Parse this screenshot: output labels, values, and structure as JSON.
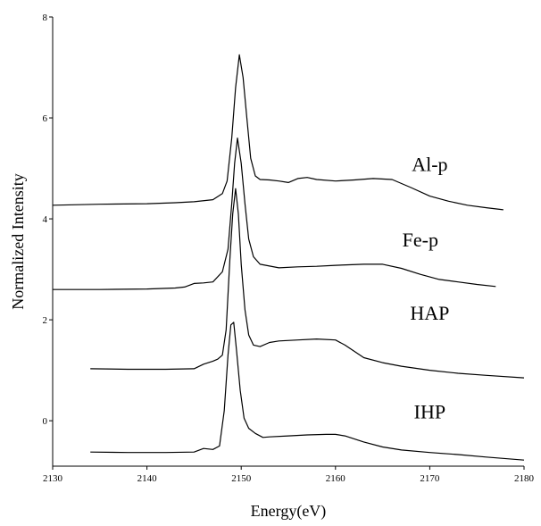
{
  "chart_data": {
    "type": "line",
    "xlabel": "Energy(eV)",
    "ylabel": "Normalized Intensity",
    "xlim": [
      2130,
      2180
    ],
    "ylim": [
      -0.9,
      8
    ],
    "x_ticks": [
      2130,
      2140,
      2150,
      2160,
      2170,
      2180
    ],
    "y_ticks": [
      0,
      2,
      4,
      6,
      8
    ],
    "grid": false,
    "line_color": "#000000",
    "series": [
      {
        "name": "Al-p",
        "points": [
          [
            2130,
            4.27
          ],
          [
            2135,
            4.29
          ],
          [
            2140,
            4.3
          ],
          [
            2143,
            4.32
          ],
          [
            2145,
            4.34
          ],
          [
            2147,
            4.38
          ],
          [
            2148,
            4.5
          ],
          [
            2148.5,
            4.75
          ],
          [
            2149,
            5.6
          ],
          [
            2149.4,
            6.6
          ],
          [
            2149.8,
            7.25
          ],
          [
            2150.2,
            6.8
          ],
          [
            2150.6,
            6.0
          ],
          [
            2151,
            5.2
          ],
          [
            2151.5,
            4.85
          ],
          [
            2152,
            4.78
          ],
          [
            2153,
            4.77
          ],
          [
            2154,
            4.75
          ],
          [
            2155,
            4.72
          ],
          [
            2156,
            4.8
          ],
          [
            2157,
            4.82
          ],
          [
            2158,
            4.78
          ],
          [
            2160,
            4.75
          ],
          [
            2162,
            4.77
          ],
          [
            2164,
            4.8
          ],
          [
            2166,
            4.78
          ],
          [
            2168,
            4.62
          ],
          [
            2170,
            4.45
          ],
          [
            2172,
            4.35
          ],
          [
            2174,
            4.27
          ],
          [
            2176,
            4.22
          ],
          [
            2177.8,
            4.18
          ]
        ]
      },
      {
        "name": "Fe-p",
        "points": [
          [
            2130,
            2.6
          ],
          [
            2135,
            2.6
          ],
          [
            2140,
            2.61
          ],
          [
            2143,
            2.63
          ],
          [
            2144,
            2.65
          ],
          [
            2145,
            2.72
          ],
          [
            2146,
            2.73
          ],
          [
            2147,
            2.75
          ],
          [
            2148,
            2.95
          ],
          [
            2148.6,
            3.4
          ],
          [
            2149,
            4.3
          ],
          [
            2149.3,
            5.1
          ],
          [
            2149.6,
            5.6
          ],
          [
            2150,
            5.1
          ],
          [
            2150.4,
            4.3
          ],
          [
            2150.8,
            3.6
          ],
          [
            2151.3,
            3.25
          ],
          [
            2152,
            3.1
          ],
          [
            2154,
            3.03
          ],
          [
            2156,
            3.05
          ],
          [
            2158,
            3.06
          ],
          [
            2160,
            3.08
          ],
          [
            2163,
            3.1
          ],
          [
            2165,
            3.1
          ],
          [
            2167,
            3.02
          ],
          [
            2169,
            2.9
          ],
          [
            2171,
            2.8
          ],
          [
            2173,
            2.75
          ],
          [
            2175,
            2.7
          ],
          [
            2177,
            2.66
          ]
        ]
      },
      {
        "name": "HAP",
        "points": [
          [
            2134,
            1.03
          ],
          [
            2138,
            1.02
          ],
          [
            2142,
            1.02
          ],
          [
            2145,
            1.03
          ],
          [
            2146,
            1.12
          ],
          [
            2147,
            1.18
          ],
          [
            2147.5,
            1.22
          ],
          [
            2148,
            1.3
          ],
          [
            2148.4,
            1.8
          ],
          [
            2148.8,
            3.2
          ],
          [
            2149.1,
            4.1
          ],
          [
            2149.4,
            4.6
          ],
          [
            2149.7,
            4.1
          ],
          [
            2150,
            3.1
          ],
          [
            2150.4,
            2.2
          ],
          [
            2150.8,
            1.7
          ],
          [
            2151.3,
            1.5
          ],
          [
            2152,
            1.47
          ],
          [
            2153,
            1.55
          ],
          [
            2154,
            1.58
          ],
          [
            2156,
            1.6
          ],
          [
            2158,
            1.62
          ],
          [
            2160,
            1.6
          ],
          [
            2161,
            1.5
          ],
          [
            2163,
            1.25
          ],
          [
            2165,
            1.15
          ],
          [
            2167,
            1.08
          ],
          [
            2170,
            1.0
          ],
          [
            2173,
            0.94
          ],
          [
            2176,
            0.9
          ],
          [
            2180,
            0.85
          ]
        ]
      },
      {
        "name": "IHP",
        "points": [
          [
            2134,
            -0.62
          ],
          [
            2138,
            -0.63
          ],
          [
            2142,
            -0.63
          ],
          [
            2145,
            -0.62
          ],
          [
            2146,
            -0.55
          ],
          [
            2147,
            -0.57
          ],
          [
            2147.7,
            -0.5
          ],
          [
            2148.2,
            0.2
          ],
          [
            2148.6,
            1.3
          ],
          [
            2148.9,
            1.9
          ],
          [
            2149.2,
            1.95
          ],
          [
            2149.5,
            1.4
          ],
          [
            2149.9,
            0.6
          ],
          [
            2150.3,
            0.05
          ],
          [
            2150.8,
            -0.15
          ],
          [
            2151.5,
            -0.25
          ],
          [
            2152.3,
            -0.33
          ],
          [
            2153,
            -0.32
          ],
          [
            2155,
            -0.3
          ],
          [
            2157,
            -0.28
          ],
          [
            2159,
            -0.27
          ],
          [
            2160,
            -0.27
          ],
          [
            2161,
            -0.3
          ],
          [
            2163,
            -0.42
          ],
          [
            2165,
            -0.52
          ],
          [
            2167,
            -0.58
          ],
          [
            2170,
            -0.63
          ],
          [
            2173,
            -0.67
          ],
          [
            2176,
            -0.72
          ],
          [
            2180,
            -0.78
          ]
        ]
      }
    ]
  }
}
